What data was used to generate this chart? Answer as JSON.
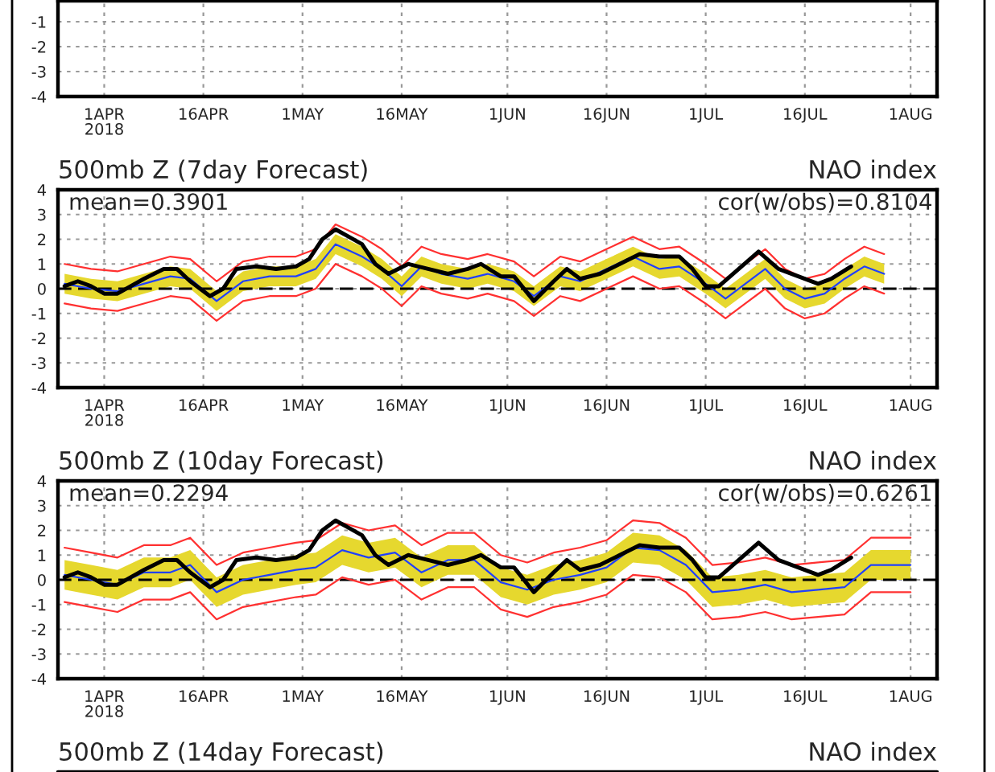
{
  "chart_data": [
    {
      "type": "line",
      "xlim": [
        "2018-03-25",
        "2018-08-05"
      ],
      "ylim": [
        -4,
        -0.16
      ],
      "yticks": [
        -4,
        -3,
        -2,
        -1
      ],
      "xticks": [
        {
          "value": "2018-04-01",
          "label": "1APR\n2018"
        },
        {
          "value": "2018-04-16",
          "label": "16APR"
        },
        {
          "value": "2018-05-01",
          "label": "1MAY"
        },
        {
          "value": "2018-05-16",
          "label": "16MAY"
        },
        {
          "value": "2018-06-01",
          "label": "1JUN"
        },
        {
          "value": "2018-06-16",
          "label": "16JUN"
        },
        {
          "value": "2018-07-01",
          "label": "1JUL"
        },
        {
          "value": "2018-07-16",
          "label": "16JUL"
        },
        {
          "value": "2018-08-01",
          "label": "1AUG"
        }
      ],
      "grid": true
    },
    {
      "type": "line",
      "title": "500mb Z (7day Forecast)",
      "subtitle": "NAO index",
      "annotations": [
        "mean=0.3901",
        "cor(w/obs)=0.8104"
      ],
      "xlim": [
        "2018-03-25",
        "2018-08-05"
      ],
      "ylim": [
        -4,
        4
      ],
      "yticks": [
        -4,
        -3,
        -2,
        -1,
        0,
        1,
        2,
        3,
        4
      ],
      "xticks": [
        {
          "value": "2018-04-01",
          "label": "1APR\n2018"
        },
        {
          "value": "2018-04-16",
          "label": "16APR"
        },
        {
          "value": "2018-05-01",
          "label": "1MAY"
        },
        {
          "value": "2018-05-16",
          "label": "16MAY"
        },
        {
          "value": "2018-06-01",
          "label": "1JUN"
        },
        {
          "value": "2018-06-16",
          "label": "16JUN"
        },
        {
          "value": "2018-07-01",
          "label": "1JUL"
        },
        {
          "value": "2018-07-16",
          "label": "16JUL"
        },
        {
          "value": "2018-08-01",
          "label": "1AUG"
        }
      ],
      "grid": true,
      "line_style": "solid",
      "ref_lines": [
        {
          "axis": "y",
          "value": 0,
          "color": "#000000",
          "line_style": "dashed"
        }
      ],
      "series": [
        {
          "color": "#000000",
          "x": [
            "2018-03-26",
            "2018-03-28",
            "2018-03-30",
            "2018-04-01",
            "2018-04-03",
            "2018-04-05",
            "2018-04-07",
            "2018-04-10",
            "2018-04-12",
            "2018-04-14",
            "2018-04-17",
            "2018-04-19",
            "2018-04-21",
            "2018-04-24",
            "2018-04-27",
            "2018-04-30",
            "2018-05-02",
            "2018-05-04",
            "2018-05-06",
            "2018-05-08",
            "2018-05-10",
            "2018-05-12",
            "2018-05-14",
            "2018-05-17",
            "2018-05-20",
            "2018-05-23",
            "2018-05-26",
            "2018-05-28",
            "2018-05-31",
            "2018-06-02",
            "2018-06-05",
            "2018-06-08",
            "2018-06-10",
            "2018-06-12",
            "2018-06-15",
            "2018-06-18",
            "2018-06-21",
            "2018-06-24",
            "2018-06-27",
            "2018-06-29",
            "2018-07-01",
            "2018-07-03",
            "2018-07-06",
            "2018-07-09",
            "2018-07-12",
            "2018-07-15",
            "2018-07-18",
            "2018-07-20",
            "2018-07-23"
          ],
          "values": [
            0.1,
            0.3,
            0.1,
            -0.2,
            -0.2,
            0.1,
            0.4,
            0.8,
            0.8,
            0.3,
            -0.3,
            0.0,
            0.8,
            0.9,
            0.8,
            0.9,
            1.2,
            2.0,
            2.4,
            2.1,
            1.8,
            1.0,
            0.6,
            1.0,
            0.8,
            0.6,
            0.8,
            1.0,
            0.5,
            0.5,
            -0.5,
            0.3,
            0.8,
            0.4,
            0.6,
            1.0,
            1.4,
            1.3,
            1.3,
            0.8,
            0.1,
            0.1,
            0.8,
            1.5,
            0.8,
            0.5,
            0.2,
            0.4,
            0.9
          ]
        },
        {
          "color": "#2040ff",
          "x": [
            "2018-03-26",
            "2018-03-30",
            "2018-04-03",
            "2018-04-07",
            "2018-04-11",
            "2018-04-14",
            "2018-04-18",
            "2018-04-22",
            "2018-04-26",
            "2018-04-30",
            "2018-05-03",
            "2018-05-06",
            "2018-05-10",
            "2018-05-13",
            "2018-05-16",
            "2018-05-19",
            "2018-05-22",
            "2018-05-26",
            "2018-05-29",
            "2018-06-02",
            "2018-06-05",
            "2018-06-09",
            "2018-06-12",
            "2018-06-16",
            "2018-06-20",
            "2018-06-24",
            "2018-06-27",
            "2018-07-01",
            "2018-07-04",
            "2018-07-07",
            "2018-07-10",
            "2018-07-13",
            "2018-07-16",
            "2018-07-19",
            "2018-07-22",
            "2018-07-25",
            "2018-07-28"
          ],
          "values": [
            0.2,
            0.0,
            -0.1,
            0.2,
            0.5,
            0.4,
            -0.5,
            0.3,
            0.5,
            0.5,
            0.8,
            1.8,
            1.3,
            0.8,
            0.1,
            0.9,
            0.6,
            0.4,
            0.6,
            0.3,
            -0.3,
            0.5,
            0.3,
            0.8,
            1.3,
            0.8,
            0.9,
            0.2,
            -0.4,
            0.2,
            0.8,
            0.0,
            -0.4,
            -0.2,
            0.4,
            0.9,
            0.6
          ],
          "lower": [
            -0.2,
            -0.4,
            -0.5,
            -0.2,
            0.1,
            0.0,
            -0.9,
            -0.1,
            0.1,
            0.1,
            0.4,
            1.4,
            0.9,
            0.4,
            -0.3,
            0.5,
            0.2,
            0.0,
            0.2,
            -0.1,
            -0.7,
            0.1,
            -0.1,
            0.4,
            0.9,
            0.4,
            0.5,
            -0.2,
            -0.8,
            -0.2,
            0.4,
            -0.4,
            -0.8,
            -0.6,
            0.0,
            0.5,
            0.2
          ],
          "upper": [
            0.6,
            0.4,
            0.3,
            0.6,
            0.9,
            0.8,
            -0.1,
            0.7,
            0.9,
            0.9,
            1.2,
            2.2,
            1.7,
            1.2,
            0.5,
            1.3,
            1.0,
            0.8,
            1.0,
            0.7,
            0.1,
            0.9,
            0.7,
            1.2,
            1.7,
            1.2,
            1.3,
            0.6,
            0.0,
            0.6,
            1.2,
            0.4,
            0.0,
            0.2,
            0.8,
            1.3,
            1.0
          ]
        },
        {
          "color": "#ff3030",
          "x": [
            "2018-03-26",
            "2018-03-30",
            "2018-04-03",
            "2018-04-07",
            "2018-04-11",
            "2018-04-14",
            "2018-04-18",
            "2018-04-22",
            "2018-04-26",
            "2018-04-30",
            "2018-05-03",
            "2018-05-06",
            "2018-05-10",
            "2018-05-13",
            "2018-05-16",
            "2018-05-19",
            "2018-05-22",
            "2018-05-26",
            "2018-05-29",
            "2018-06-02",
            "2018-06-05",
            "2018-06-09",
            "2018-06-12",
            "2018-06-16",
            "2018-06-20",
            "2018-06-24",
            "2018-06-27",
            "2018-07-01",
            "2018-07-04",
            "2018-07-07",
            "2018-07-10",
            "2018-07-13",
            "2018-07-16",
            "2018-07-19",
            "2018-07-22",
            "2018-07-25",
            "2018-07-28"
          ],
          "values": [
            1.0,
            0.8,
            0.7,
            1.0,
            1.3,
            1.2,
            0.3,
            1.1,
            1.3,
            1.3,
            1.6,
            2.6,
            2.1,
            1.6,
            0.9,
            1.7,
            1.4,
            1.2,
            1.4,
            1.1,
            0.5,
            1.3,
            1.1,
            1.6,
            2.1,
            1.6,
            1.7,
            1.0,
            0.4,
            1.0,
            1.6,
            0.8,
            0.4,
            0.6,
            1.2,
            1.7,
            1.4
          ]
        },
        {
          "color": "#ff3030",
          "x": [
            "2018-03-26",
            "2018-03-30",
            "2018-04-03",
            "2018-04-07",
            "2018-04-11",
            "2018-04-14",
            "2018-04-18",
            "2018-04-22",
            "2018-04-26",
            "2018-04-30",
            "2018-05-03",
            "2018-05-06",
            "2018-05-10",
            "2018-05-13",
            "2018-05-16",
            "2018-05-19",
            "2018-05-22",
            "2018-05-26",
            "2018-05-29",
            "2018-06-02",
            "2018-06-05",
            "2018-06-09",
            "2018-06-12",
            "2018-06-16",
            "2018-06-20",
            "2018-06-24",
            "2018-06-27",
            "2018-07-01",
            "2018-07-04",
            "2018-07-07",
            "2018-07-10",
            "2018-07-13",
            "2018-07-16",
            "2018-07-19",
            "2018-07-22",
            "2018-07-25",
            "2018-07-28"
          ],
          "values": [
            -0.6,
            -0.8,
            -0.9,
            -0.6,
            -0.3,
            -0.4,
            -1.3,
            -0.5,
            -0.3,
            -0.3,
            0.0,
            1.0,
            0.5,
            0.0,
            -0.7,
            0.1,
            -0.2,
            -0.4,
            -0.2,
            -0.5,
            -1.1,
            -0.3,
            -0.5,
            0.0,
            0.5,
            0.0,
            0.1,
            -0.6,
            -1.2,
            -0.6,
            0.0,
            -0.8,
            -1.2,
            -1.0,
            -0.4,
            0.1,
            -0.2
          ]
        }
      ]
    },
    {
      "type": "line",
      "title": "500mb Z (10day Forecast)",
      "subtitle": "NAO index",
      "annotations": [
        "mean=0.2294",
        "cor(w/obs)=0.6261"
      ],
      "xlim": [
        "2018-03-25",
        "2018-08-05"
      ],
      "ylim": [
        -4,
        4
      ],
      "yticks": [
        -4,
        -3,
        -2,
        -1,
        0,
        1,
        2,
        3,
        4
      ],
      "xticks": [
        {
          "value": "2018-04-01",
          "label": "1APR\n2018"
        },
        {
          "value": "2018-04-16",
          "label": "16APR"
        },
        {
          "value": "2018-05-01",
          "label": "1MAY"
        },
        {
          "value": "2018-05-16",
          "label": "16MAY"
        },
        {
          "value": "2018-06-01",
          "label": "1JUN"
        },
        {
          "value": "2018-06-16",
          "label": "16JUN"
        },
        {
          "value": "2018-07-01",
          "label": "1JUL"
        },
        {
          "value": "2018-07-16",
          "label": "16JUL"
        },
        {
          "value": "2018-08-01",
          "label": "1AUG"
        }
      ],
      "grid": true,
      "line_style": "solid",
      "ref_lines": [
        {
          "axis": "y",
          "value": 0,
          "color": "#000000",
          "line_style": "dashed"
        }
      ],
      "series": [
        {
          "color": "#000000",
          "x": [
            "2018-03-26",
            "2018-03-28",
            "2018-03-30",
            "2018-04-01",
            "2018-04-03",
            "2018-04-05",
            "2018-04-07",
            "2018-04-10",
            "2018-04-12",
            "2018-04-14",
            "2018-04-17",
            "2018-04-19",
            "2018-04-21",
            "2018-04-24",
            "2018-04-27",
            "2018-04-30",
            "2018-05-02",
            "2018-05-04",
            "2018-05-06",
            "2018-05-08",
            "2018-05-10",
            "2018-05-12",
            "2018-05-14",
            "2018-05-17",
            "2018-05-20",
            "2018-05-23",
            "2018-05-26",
            "2018-05-28",
            "2018-05-31",
            "2018-06-02",
            "2018-06-05",
            "2018-06-08",
            "2018-06-10",
            "2018-06-12",
            "2018-06-15",
            "2018-06-18",
            "2018-06-21",
            "2018-06-24",
            "2018-06-27",
            "2018-06-29",
            "2018-07-01",
            "2018-07-03",
            "2018-07-06",
            "2018-07-09",
            "2018-07-12",
            "2018-07-15",
            "2018-07-18",
            "2018-07-20",
            "2018-07-23"
          ],
          "values": [
            0.1,
            0.3,
            0.1,
            -0.2,
            -0.2,
            0.1,
            0.4,
            0.8,
            0.8,
            0.3,
            -0.3,
            0.0,
            0.8,
            0.9,
            0.8,
            0.9,
            1.2,
            2.0,
            2.4,
            2.1,
            1.8,
            1.0,
            0.6,
            1.0,
            0.8,
            0.6,
            0.8,
            1.0,
            0.5,
            0.5,
            -0.5,
            0.3,
            0.8,
            0.4,
            0.6,
            1.0,
            1.4,
            1.3,
            1.3,
            0.8,
            0.1,
            0.1,
            0.8,
            1.5,
            0.8,
            0.5,
            0.2,
            0.4,
            0.9
          ]
        },
        {
          "color": "#2040ff",
          "x": [
            "2018-03-26",
            "2018-03-30",
            "2018-04-03",
            "2018-04-07",
            "2018-04-11",
            "2018-04-14",
            "2018-04-18",
            "2018-04-22",
            "2018-04-26",
            "2018-04-30",
            "2018-05-03",
            "2018-05-07",
            "2018-05-11",
            "2018-05-15",
            "2018-05-19",
            "2018-05-23",
            "2018-05-27",
            "2018-05-31",
            "2018-06-04",
            "2018-06-08",
            "2018-06-12",
            "2018-06-16",
            "2018-06-20",
            "2018-06-24",
            "2018-06-28",
            "2018-07-02",
            "2018-07-06",
            "2018-07-10",
            "2018-07-14",
            "2018-07-18",
            "2018-07-22",
            "2018-07-26",
            "2018-08-01"
          ],
          "values": [
            0.2,
            0.0,
            -0.2,
            0.3,
            0.3,
            0.6,
            -0.5,
            0.0,
            0.2,
            0.4,
            0.5,
            1.2,
            0.9,
            1.1,
            0.3,
            0.8,
            0.8,
            -0.1,
            -0.4,
            0.0,
            0.2,
            0.5,
            1.3,
            1.2,
            0.6,
            -0.5,
            -0.4,
            -0.2,
            -0.5,
            -0.4,
            -0.3,
            0.6,
            0.6
          ],
          "lower": [
            -0.4,
            -0.6,
            -0.8,
            -0.3,
            -0.3,
            0.0,
            -1.1,
            -0.6,
            -0.4,
            -0.2,
            -0.1,
            0.6,
            0.3,
            0.5,
            -0.3,
            0.2,
            0.2,
            -0.7,
            -1.0,
            -0.6,
            -0.4,
            -0.1,
            0.7,
            0.6,
            0.0,
            -1.1,
            -1.0,
            -0.8,
            -1.1,
            -1.0,
            -0.9,
            0.0,
            0.0
          ],
          "upper": [
            0.8,
            0.6,
            0.4,
            0.9,
            0.9,
            1.2,
            0.1,
            0.6,
            0.8,
            1.0,
            1.1,
            1.8,
            1.5,
            1.7,
            0.9,
            1.4,
            1.4,
            0.5,
            0.2,
            0.6,
            0.8,
            1.1,
            1.9,
            1.8,
            1.2,
            0.1,
            0.2,
            0.4,
            0.1,
            0.2,
            0.3,
            1.2,
            1.2
          ]
        },
        {
          "color": "#ff3030",
          "x": [
            "2018-03-26",
            "2018-03-30",
            "2018-04-03",
            "2018-04-07",
            "2018-04-11",
            "2018-04-14",
            "2018-04-18",
            "2018-04-22",
            "2018-04-26",
            "2018-04-30",
            "2018-05-03",
            "2018-05-07",
            "2018-05-11",
            "2018-05-15",
            "2018-05-19",
            "2018-05-23",
            "2018-05-27",
            "2018-05-31",
            "2018-06-04",
            "2018-06-08",
            "2018-06-12",
            "2018-06-16",
            "2018-06-20",
            "2018-06-24",
            "2018-06-28",
            "2018-07-02",
            "2018-07-06",
            "2018-07-10",
            "2018-07-14",
            "2018-07-18",
            "2018-07-22",
            "2018-07-26",
            "2018-08-01"
          ],
          "values": [
            1.3,
            1.1,
            0.9,
            1.4,
            1.4,
            1.7,
            0.6,
            1.1,
            1.3,
            1.5,
            1.6,
            2.3,
            2.0,
            2.2,
            1.4,
            1.9,
            1.9,
            1.0,
            0.7,
            1.1,
            1.3,
            1.6,
            2.4,
            2.3,
            1.7,
            0.6,
            0.7,
            0.9,
            0.6,
            0.7,
            0.8,
            1.7,
            1.7
          ]
        },
        {
          "color": "#ff3030",
          "x": [
            "2018-03-26",
            "2018-03-30",
            "2018-04-03",
            "2018-04-07",
            "2018-04-11",
            "2018-04-14",
            "2018-04-18",
            "2018-04-22",
            "2018-04-26",
            "2018-04-30",
            "2018-05-03",
            "2018-05-07",
            "2018-05-11",
            "2018-05-15",
            "2018-05-19",
            "2018-05-23",
            "2018-05-27",
            "2018-05-31",
            "2018-06-04",
            "2018-06-08",
            "2018-06-12",
            "2018-06-16",
            "2018-06-20",
            "2018-06-24",
            "2018-06-28",
            "2018-07-02",
            "2018-07-06",
            "2018-07-10",
            "2018-07-14",
            "2018-07-18",
            "2018-07-22",
            "2018-07-26",
            "2018-08-01"
          ],
          "values": [
            -0.9,
            -1.1,
            -1.3,
            -0.8,
            -0.8,
            -0.5,
            -1.6,
            -1.1,
            -0.9,
            -0.7,
            -0.6,
            0.1,
            -0.2,
            0.0,
            -0.8,
            -0.3,
            -0.3,
            -1.2,
            -1.5,
            -1.1,
            -0.9,
            -0.6,
            0.2,
            0.1,
            -0.5,
            -1.6,
            -1.5,
            -1.3,
            -1.6,
            -1.5,
            -1.4,
            -0.5,
            -0.5
          ]
        }
      ]
    },
    {
      "type": "other",
      "title": "500mb Z (14day Forecast)",
      "subtitle": "NAO index"
    }
  ]
}
